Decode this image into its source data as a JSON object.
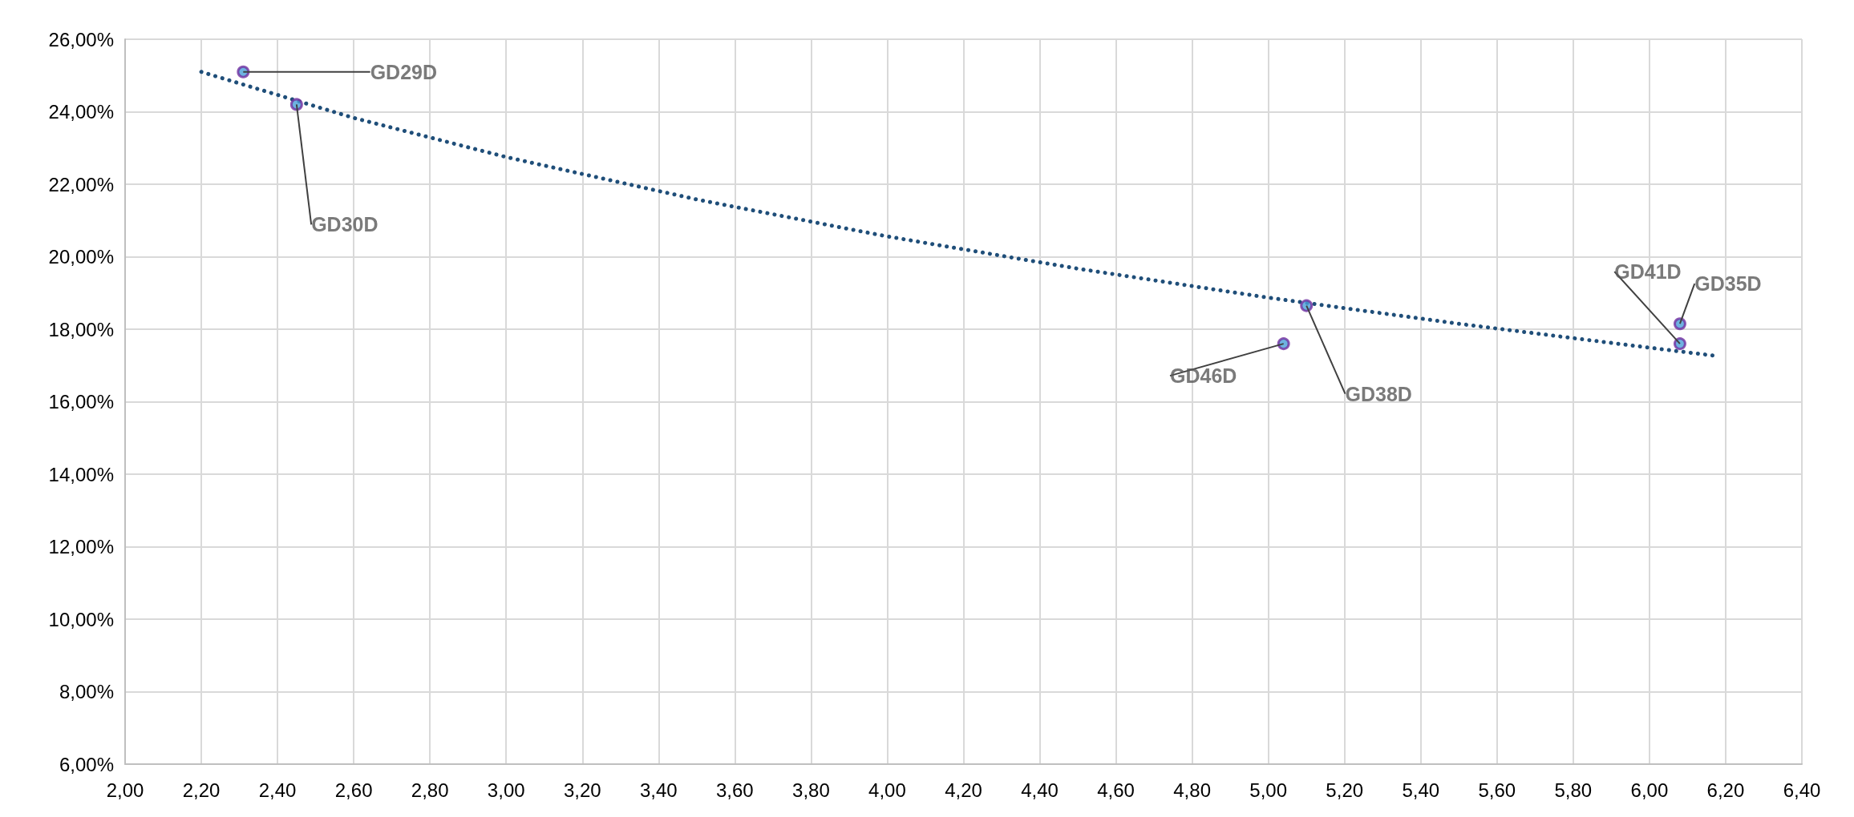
{
  "chart_data": {
    "type": "scatter",
    "marker": "circle",
    "grid": true,
    "series": [
      {
        "color": "#7030a0",
        "x": [
          2.31,
          2.45,
          5.04,
          5.1,
          6.08,
          6.08
        ],
        "values": [
          25.1,
          24.2,
          17.6,
          18.65,
          17.6,
          18.15
        ]
      },
      {
        "type": "line",
        "color": "#1f4e79",
        "line_style": "dotted",
        "marker": "none",
        "x": [
          2.2,
          2.6,
          3.0,
          3.5,
          4.0,
          4.5,
          5.0,
          5.5,
          6.0,
          6.17
        ],
        "values": [
          25.1,
          23.83,
          22.75,
          21.58,
          20.56,
          19.67,
          18.87,
          18.15,
          17.49,
          17.27
        ]
      }
    ],
    "annotations": [
      {
        "text": "GD29D",
        "x": 2.31,
        "y": 25.1
      },
      {
        "text": "GD30D",
        "x": 2.45,
        "y": 24.2
      },
      {
        "text": "GD46D",
        "x": 5.04,
        "y": 17.6
      },
      {
        "text": "GD38D",
        "x": 5.1,
        "y": 18.65
      },
      {
        "text": "GD41D",
        "x": 6.08,
        "y": 17.6
      },
      {
        "text": "GD35D",
        "x": 6.08,
        "y": 18.15
      }
    ],
    "xlim": [
      2,
      6.4
    ],
    "xticks": [
      {
        "value": 2,
        "label": "2,00"
      },
      {
        "value": 2.2,
        "label": "2,20"
      },
      {
        "value": 2.4,
        "label": "2,40"
      },
      {
        "value": 2.6,
        "label": "2,60"
      },
      {
        "value": 2.8,
        "label": "2,80"
      },
      {
        "value": 3,
        "label": "3,00"
      },
      {
        "value": 3.2,
        "label": "3,20"
      },
      {
        "value": 3.4,
        "label": "3,40"
      },
      {
        "value": 3.6,
        "label": "3,60"
      },
      {
        "value": 3.8,
        "label": "3,80"
      },
      {
        "value": 4,
        "label": "4,00"
      },
      {
        "value": 4.2,
        "label": "4,20"
      },
      {
        "value": 4.4,
        "label": "4,40"
      },
      {
        "value": 4.6,
        "label": "4,60"
      },
      {
        "value": 4.8,
        "label": "4,80"
      },
      {
        "value": 5,
        "label": "5,00"
      },
      {
        "value": 5.2,
        "label": "5,20"
      },
      {
        "value": 5.4,
        "label": "5,40"
      },
      {
        "value": 5.6,
        "label": "5,60"
      },
      {
        "value": 5.8,
        "label": "5,80"
      },
      {
        "value": 6,
        "label": "6,00"
      },
      {
        "value": 6.2,
        "label": "6,20"
      },
      {
        "value": 6.4,
        "label": "6,40"
      }
    ],
    "ylim": [
      6,
      26
    ],
    "yticks": [
      {
        "value": 6,
        "label": "6,00%"
      },
      {
        "value": 8,
        "label": "8,00%"
      },
      {
        "value": 10,
        "label": "10,00%"
      },
      {
        "value": 12,
        "label": "12,00%"
      },
      {
        "value": 14,
        "label": "14,00%"
      },
      {
        "value": 16,
        "label": "16,00%"
      },
      {
        "value": 18,
        "label": "18,00%"
      },
      {
        "value": 20,
        "label": "20,00%"
      },
      {
        "value": 22,
        "label": "22,00%"
      },
      {
        "value": 24,
        "label": "24,00%"
      },
      {
        "value": 26,
        "label": "26,00%"
      }
    ]
  }
}
